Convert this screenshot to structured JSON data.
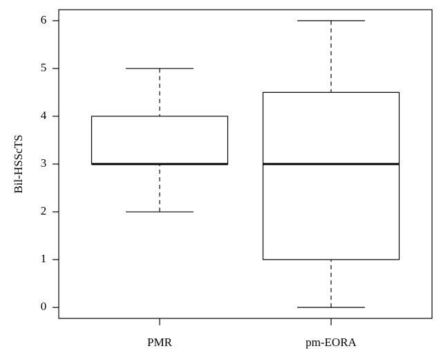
{
  "chart_data": {
    "type": "box",
    "y_label": "Bil-HSScTS",
    "categories": [
      "PMR",
      "pm-EORA"
    ],
    "boxes": [
      {
        "min": 2,
        "q1": 3,
        "median": 3,
        "q3": 4,
        "max": 5
      },
      {
        "min": 0,
        "q1": 1,
        "median": 3,
        "q3": 4.5,
        "max": 6
      }
    ],
    "color": "#000000",
    "ylim": [
      -0.23,
      6.23
    ],
    "yticks": [
      0,
      1,
      2,
      3,
      4,
      5,
      6
    ]
  }
}
